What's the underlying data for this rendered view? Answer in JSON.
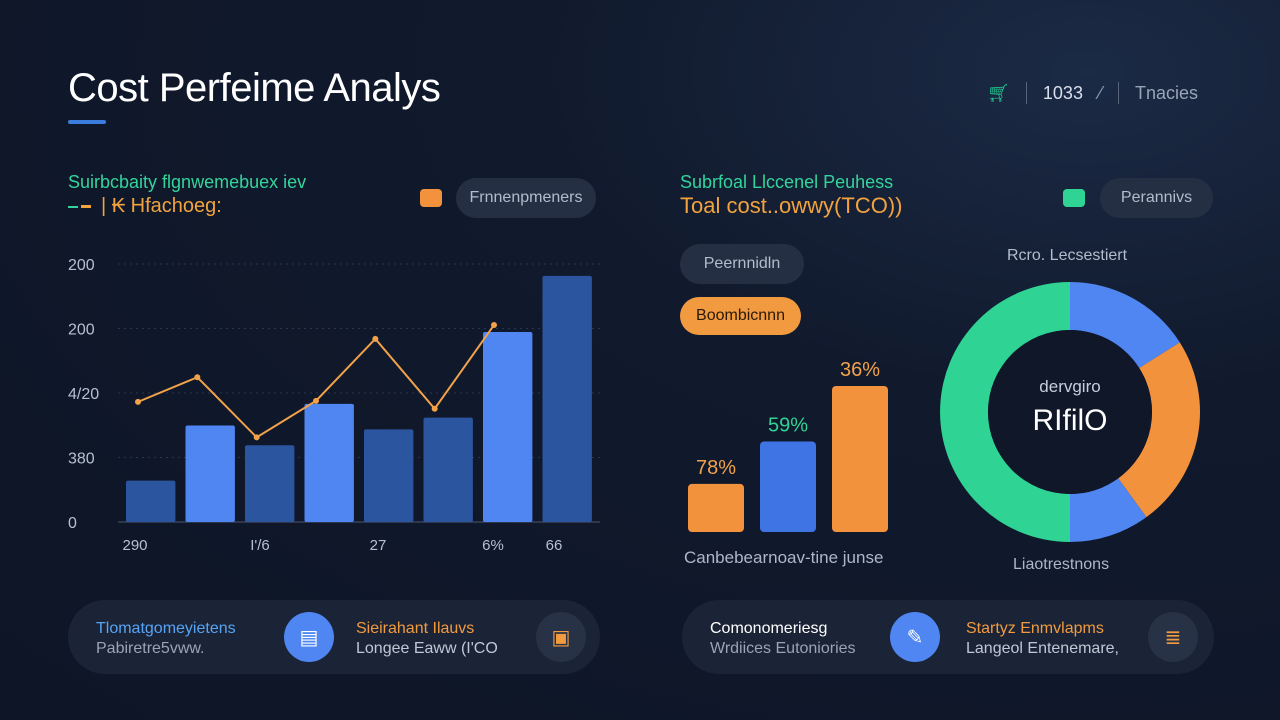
{
  "header": {
    "title": "Cost Perfeime Analys",
    "value": "1033",
    "link": "Tnacies",
    "icon": "cart-icon"
  },
  "left_panel": {
    "subtitle_line1": "Suirbcbaity flgnwemebuex iev",
    "subtitle_line2": "| ₭ Hfachoeg:",
    "legend_pill": "Frnnenpmeners"
  },
  "right_panel": {
    "subtitle_line1": "Subrfoal Llccenel Peuhess",
    "subtitle_line2": "Toal cost..owwy(TCO))",
    "legend_pill": "Perannivs",
    "pill_dark": "Peernnidln",
    "pill_orange": "Boombicnnn",
    "bar_caption": "Canbebearnoav-tine junse",
    "donut_title": "Rcro. Lecsestiert",
    "donut_center_small": "dervgiro",
    "donut_center_big": "RIfilO",
    "donut_caption": "Liaotrestnons"
  },
  "cards": [
    {
      "line1": "Tlomatgomeyietens",
      "line2": "Pabiretre5vww.",
      "icon": "dollar-bills-icon"
    },
    {
      "line1": "Sieirahant Ilauvs",
      "line2": "Longee Eaww (I'CO",
      "icon": "chart-box-icon"
    },
    {
      "line1": "Comonomeriesg",
      "line2": "Wrdiices Eutoniories",
      "icon": "edit-icon"
    },
    {
      "line1": "Startyz Enmvlapms",
      "line2": "Langeol Entenemare,",
      "icon": "stack-icon"
    }
  ],
  "colors": {
    "accent_blue": "#4f86f2",
    "bar_blue_dark": "#2c55a0",
    "orange": "#f2923d",
    "green": "#2fd394",
    "card_bg": "#1b2437"
  },
  "chart_data": [
    {
      "type": "bar",
      "bar_values": [
        42,
        98,
        78,
        120,
        94,
        106,
        193,
        250
      ],
      "bar_shades": [
        "dark",
        "light",
        "dark",
        "light",
        "dark",
        "dark",
        "light",
        "dark"
      ],
      "line_values": [
        122,
        147,
        86,
        123,
        186,
        115,
        200
      ],
      "y_tick_labels": [
        "200",
        "200",
        "4/20",
        "380",
        "0"
      ],
      "x_tick_labels": [
        "290",
        "I'/6",
        "27",
        "6%",
        "66"
      ],
      "ylim": [
        0,
        262
      ]
    },
    {
      "type": "bar",
      "categories": [
        "78%",
        "59%",
        "36%"
      ],
      "values": [
        78,
        59,
        36
      ],
      "bar_heights_rel": [
        0.33,
        0.62,
        1.0
      ],
      "colors": [
        "#f2923d",
        "#3f74e4",
        "#f2923d"
      ]
    },
    {
      "type": "pie",
      "slices": [
        {
          "value": 16,
          "color": "#4f86f2"
        },
        {
          "value": 24,
          "color": "#f2923d"
        },
        {
          "value": 10,
          "color": "#4f86f2"
        },
        {
          "value": 50,
          "color": "#2fd394"
        }
      ]
    }
  ]
}
